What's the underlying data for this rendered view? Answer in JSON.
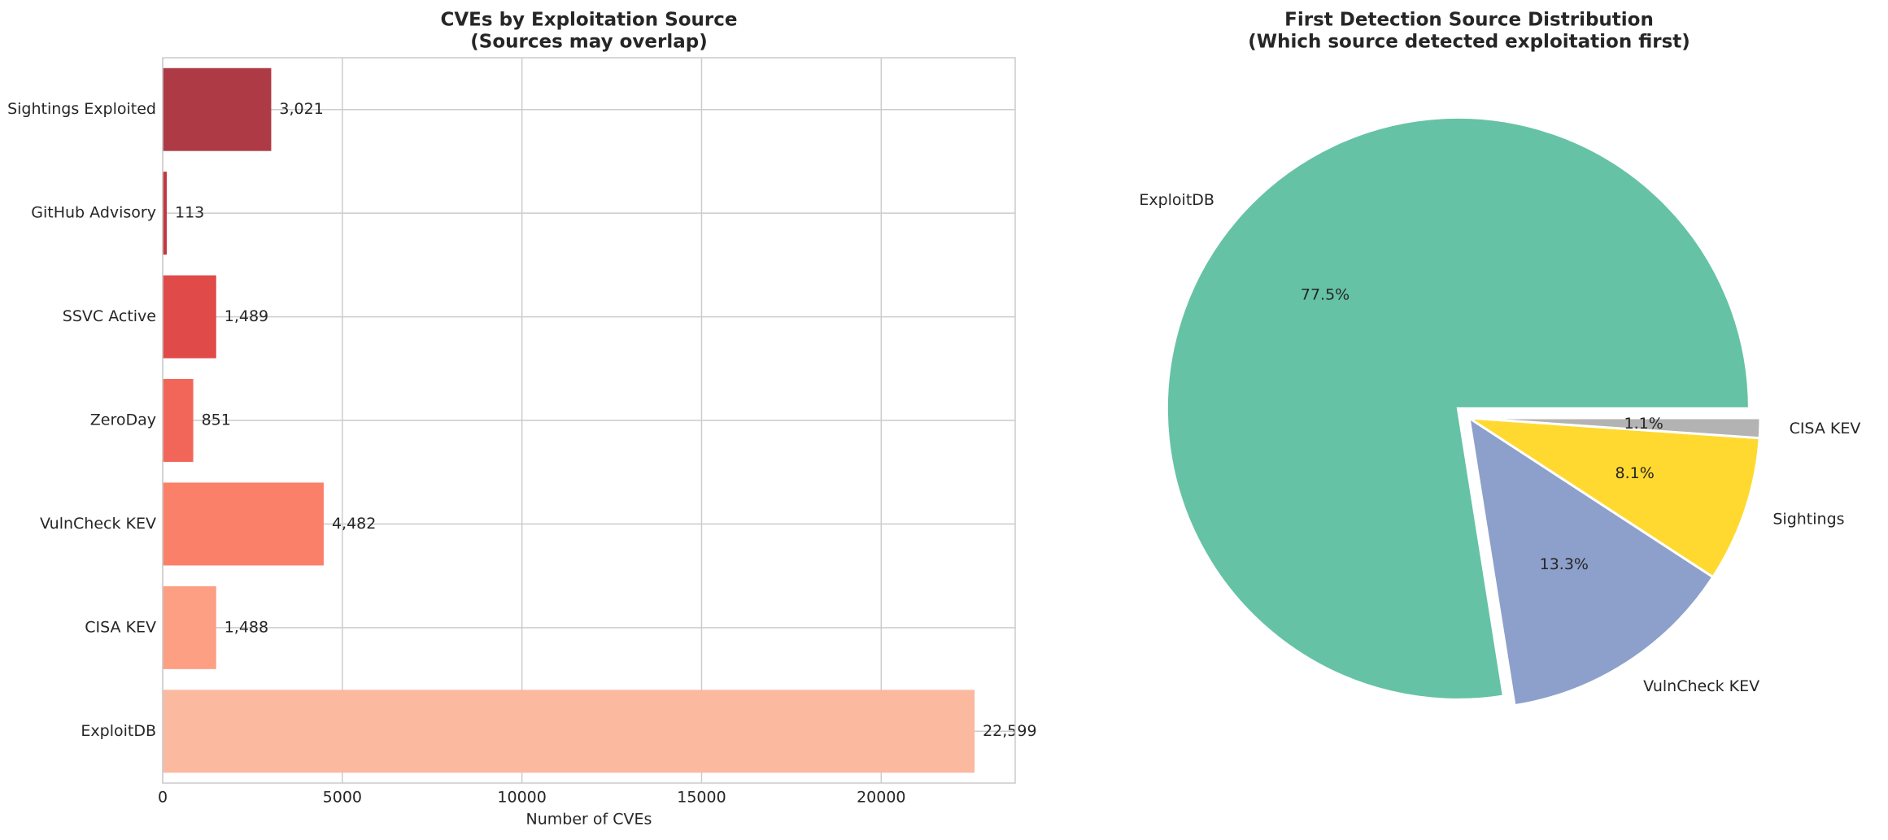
{
  "chart_data": [
    {
      "type": "barh",
      "title": "CVEs by Exploitation Source",
      "subtitle": "(Sources may overlap)",
      "xlabel": "Number of CVEs",
      "categories": [
        "ExploitDB",
        "CISA KEV",
        "VulnCheck KEV",
        "ZeroDay",
        "SSVC Active",
        "GitHub Advisory",
        "Sightings Exploited"
      ],
      "values": [
        22599,
        1488,
        4482,
        851,
        1489,
        113,
        3021
      ],
      "value_labels": [
        "22,599",
        "1,488",
        "4,482",
        "851",
        "1,489",
        "113",
        "3,021"
      ],
      "colors": [
        "#fbb9a0",
        "#fc9f82",
        "#fb8069",
        "#f2665a",
        "#e04a49",
        "#c5363f",
        "#ae3a45"
      ],
      "xlim": [
        0,
        23729
      ],
      "xticks": [
        0,
        5000,
        10000,
        15000,
        20000
      ],
      "grid": true
    },
    {
      "type": "pie",
      "title": "First Detection Source Distribution",
      "subtitle": "(Which source detected exploitation first)",
      "categories": [
        "ExploitDB",
        "VulnCheck KEV",
        "Sightings",
        "CISA KEV"
      ],
      "values": [
        77.5,
        13.3,
        8.1,
        1.1
      ],
      "value_labels": [
        "77.5%",
        "13.3%",
        "8.1%",
        "1.1%"
      ],
      "colors": [
        "#66c2a5",
        "#8da0cb",
        "#ffd92f",
        "#b3b3b3"
      ]
    }
  ]
}
